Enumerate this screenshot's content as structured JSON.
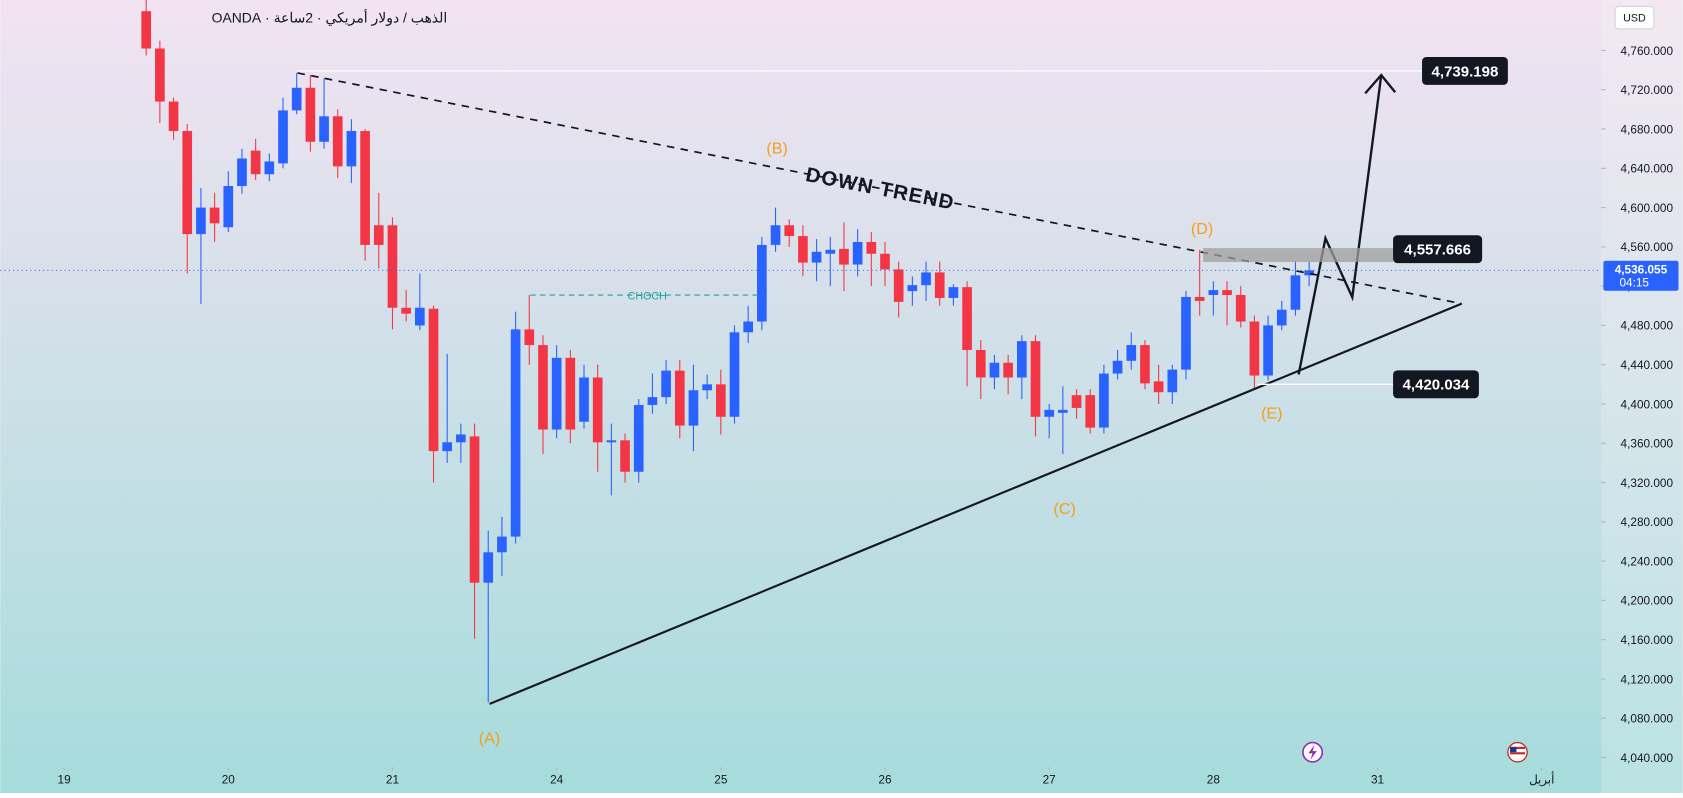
{
  "chart_data": {
    "type": "candlestick",
    "title": "الذهب / دولار أمريكي · 2ساعة · OANDA",
    "currency": "USD",
    "up_color": "#2962ff",
    "down_color": "#f23645",
    "x": [
      0,
      1,
      2,
      3,
      4,
      5,
      6,
      7,
      8,
      9,
      10,
      11,
      12,
      13,
      14,
      15,
      16,
      17,
      18,
      19,
      20,
      21,
      22,
      23,
      24,
      25,
      26,
      27,
      28,
      29,
      30,
      31,
      32,
      33,
      34,
      35,
      36,
      37,
      38,
      39,
      40,
      41,
      42,
      43,
      44,
      45,
      46,
      47,
      48,
      49,
      50,
      51,
      52,
      53,
      54,
      55,
      56,
      57,
      58,
      59,
      60,
      61,
      62,
      63,
      64,
      65,
      66,
      67,
      68,
      69,
      70,
      71,
      72,
      73,
      74,
      75,
      76,
      77,
      78,
      79,
      80,
      81,
      82,
      83,
      84,
      85
    ],
    "open": [
      4800,
      4762,
      4708,
      4678,
      4573,
      4600,
      4580,
      4622,
      4658,
      4634,
      4645,
      4699,
      4722,
      4667,
      4693,
      4642,
      4678,
      4582,
      4582,
      4498,
      4480,
      4497,
      4352,
      4361,
      4367,
      4218,
      4249,
      4265,
      4476,
      4460,
      4374,
      4447,
      4382,
      4427,
      4361,
      4363,
      4331,
      4399,
      4407,
      4434,
      4378,
      4414,
      4420,
      4387,
      4473,
      4484,
      4562,
      4582,
      4571,
      4544,
      4553,
      4558,
      4542,
      4565,
      4553,
      4537,
      4515,
      4521,
      4534,
      4508,
      4519,
      4455,
      4427,
      4442,
      4427,
      4464,
      4387,
      4391,
      4409,
      4409,
      4376,
      4431,
      4444,
      4460,
      4423,
      4412,
      4435,
      4509,
      4511,
      4516,
      4511,
      4484,
      4429,
      4480,
      4496,
      4531
    ],
    "high": [
      4815,
      4770,
      4712,
      4685,
      4620,
      4615,
      4637,
      4660,
      4670,
      4655,
      4712,
      4737,
      4735,
      4732,
      4700,
      4690,
      4680,
      4615,
      4590,
      4516,
      4533,
      4500,
      4451,
      4380,
      4380,
      4271,
      4285,
      4494,
      4511,
      4470,
      4460,
      4455,
      4440,
      4440,
      4380,
      4370,
      4405,
      4431,
      4445,
      4445,
      4440,
      4430,
      4435,
      4480,
      4500,
      4570,
      4600,
      4588,
      4582,
      4568,
      4570,
      4585,
      4578,
      4575,
      4565,
      4545,
      4530,
      4545,
      4545,
      4522,
      4525,
      4465,
      4450,
      4450,
      4470,
      4470,
      4400,
      4418,
      4415,
      4415,
      4440,
      4455,
      4473,
      4465,
      4440,
      4440,
      4515,
      4557,
      4525,
      4525,
      4520,
      4490,
      4490,
      4505,
      4545,
      4545
    ],
    "low": [
      4755,
      4686,
      4669,
      4533,
      4502,
      4565,
      4575,
      4614,
      4628,
      4627,
      4640,
      4695,
      4657,
      4660,
      4630,
      4625,
      4546,
      4538,
      4476,
      4484,
      4475,
      4320,
      4340,
      4340,
      4161,
      4096,
      4225,
      4258,
      4440,
      4349,
      4365,
      4360,
      4375,
      4331,
      4307,
      4320,
      4320,
      4390,
      4400,
      4365,
      4352,
      4405,
      4369,
      4380,
      4462,
      4475,
      4555,
      4560,
      4530,
      4525,
      4520,
      4515,
      4530,
      4520,
      4520,
      4488,
      4500,
      4505,
      4500,
      4500,
      4418,
      4405,
      4415,
      4410,
      4405,
      4367,
      4365,
      4349,
      4385,
      4370,
      4370,
      4425,
      4435,
      4415,
      4400,
      4400,
      4425,
      4490,
      4490,
      4480,
      4478,
      4415,
      4424,
      4475,
      4490,
      4520
    ],
    "close": [
      4762,
      4708,
      4678,
      4573,
      4600,
      4584,
      4622,
      4650,
      4634,
      4647,
      4699,
      4722,
      4667,
      4693,
      4642,
      4678,
      4562,
      4562,
      4498,
      4492,
      4498,
      4352,
      4361,
      4369,
      4218,
      4249,
      4265,
      4476,
      4460,
      4374,
      4447,
      4374,
      4427,
      4361,
      4363,
      4331,
      4399,
      4407,
      4434,
      4378,
      4414,
      4420,
      4387,
      4473,
      4484,
      4562,
      4582,
      4571,
      4544,
      4555,
      4557,
      4542,
      4565,
      4553,
      4537,
      4504,
      4521,
      4534,
      4508,
      4519,
      4455,
      4427,
      4442,
      4427,
      4464,
      4387,
      4394,
      4394,
      4396,
      4376,
      4431,
      4444,
      4460,
      4421,
      4412,
      4435,
      4509,
      4505,
      4516,
      4511,
      4484,
      4429,
      4480,
      4496,
      4531,
      4536.055
    ],
    "xlim": [
      -10.67,
      106.35
    ],
    "xticks": [
      {
        "value": -6,
        "label": "19"
      },
      {
        "value": 6,
        "label": "20"
      },
      {
        "value": 18,
        "label": "21"
      },
      {
        "value": 30,
        "label": "24"
      },
      {
        "value": 42,
        "label": "25"
      },
      {
        "value": 54,
        "label": "26"
      },
      {
        "value": 66,
        "label": "27"
      },
      {
        "value": 78,
        "label": "28"
      },
      {
        "value": 90,
        "label": "31"
      },
      {
        "value": 102,
        "label": "أبريل"
      }
    ],
    "ylim": [
      4030.1,
      4811.4
    ],
    "yticks": [
      {
        "value": 4040,
        "label": "4,040.000"
      },
      {
        "value": 4080,
        "label": "4,080.000"
      },
      {
        "value": 4120,
        "label": "4,120.000"
      },
      {
        "value": 4160,
        "label": "4,160.000"
      },
      {
        "value": 4200,
        "label": "4,200.000"
      },
      {
        "value": 4240,
        "label": "4,240.000"
      },
      {
        "value": 4280,
        "label": "4,280.000"
      },
      {
        "value": 4320,
        "label": "4,320.000"
      },
      {
        "value": 4360,
        "label": "4,360.000"
      },
      {
        "value": 4400,
        "label": "4,400.000"
      },
      {
        "value": 4440,
        "label": "4,440.000"
      },
      {
        "value": 4480,
        "label": "4,480.000"
      },
      {
        "value": 4520,
        "label": "4,520.000"
      },
      {
        "value": 4560,
        "label": "4,560.000"
      },
      {
        "value": 4600,
        "label": "4,600.000"
      },
      {
        "value": 4640,
        "label": "4,640.000"
      },
      {
        "value": 4680,
        "label": "4,680.000"
      },
      {
        "value": 4720,
        "label": "4,720.000"
      },
      {
        "value": 4760,
        "label": "4,760.000"
      }
    ],
    "last_price": {
      "value": 4536.055,
      "label": "4,536.055"
    },
    "countdown": "04:15",
    "levels": [
      {
        "value": 4739.198,
        "label": "4,739.198"
      },
      {
        "value": 4557.666,
        "label": "4,557.666"
      },
      {
        "value": 4420.034,
        "label": "4,420.034"
      }
    ],
    "annotations": {
      "waves": [
        "(A)",
        "(B)",
        "(C)",
        "(D)",
        "(E)"
      ],
      "trend_label": "DOWN TREND",
      "choch": "CHOCH"
    }
  }
}
